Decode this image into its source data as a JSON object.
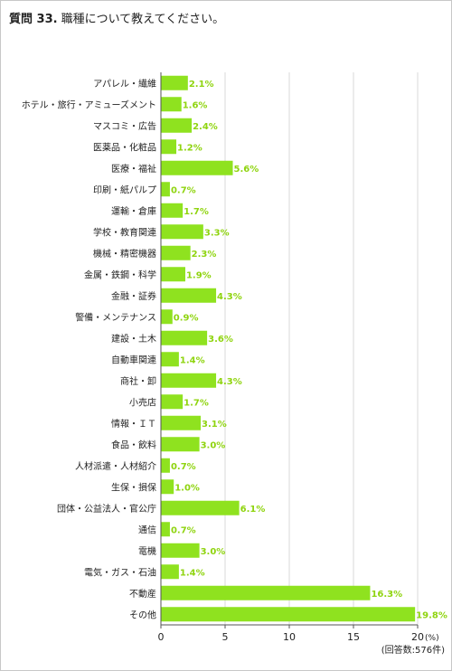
{
  "title": {
    "number": "質問 33.",
    "text": "職種について教えてください。"
  },
  "colors": {
    "bar": "#8fe21f",
    "value_label": "#8fd40f",
    "grid": "#d8d8d8",
    "axis": "#555555"
  },
  "chart_data": {
    "type": "bar",
    "orientation": "horizontal",
    "categories": [
      "アパレル・繊維",
      "ホテル・旅行・アミューズメント",
      "マスコミ・広告",
      "医薬品・化粧品",
      "医療・福祉",
      "印刷・紙パルプ",
      "運輸・倉庫",
      "学校・教育関連",
      "機械・精密機器",
      "金属・鉄鋼・科学",
      "金融・証券",
      "警備・メンテナンス",
      "建設・土木",
      "自動車関連",
      "商社・卸",
      "小売店",
      "情報・ＩＴ",
      "食品・飲料",
      "人材派遣・人材紹介",
      "生保・損保",
      "団体・公益法人・官公庁",
      "通信",
      "電機",
      "電気・ガス・石油",
      "不動産",
      "その他"
    ],
    "values": [
      2.1,
      1.6,
      2.4,
      1.2,
      5.6,
      0.7,
      1.7,
      3.3,
      2.3,
      1.9,
      4.3,
      0.9,
      3.6,
      1.4,
      4.3,
      1.7,
      3.1,
      3.0,
      0.7,
      1.0,
      6.1,
      0.7,
      3.0,
      1.4,
      16.3,
      19.8
    ],
    "value_labels": [
      "2.1%",
      "1.6%",
      "2.4%",
      "1.2%",
      "5.6%",
      "0.7%",
      "1.7%",
      "3.3%",
      "2.3%",
      "1.9%",
      "4.3%",
      "0.9%",
      "3.6%",
      "1.4%",
      "4.3%",
      "1.7%",
      "3.1%",
      "3.0%",
      "0.7%",
      "1.0%",
      "6.1%",
      "0.7%",
      "3.0%",
      "1.4%",
      "16.3%",
      "19.8%"
    ],
    "xlim": [
      0,
      20
    ],
    "xticks": [
      0,
      5,
      10,
      15,
      20
    ],
    "xticklabels": [
      "0",
      "5",
      "10",
      "15",
      "20"
    ],
    "x_unit": "(%)",
    "footnote": "(回答数:576件)",
    "grid": true
  }
}
